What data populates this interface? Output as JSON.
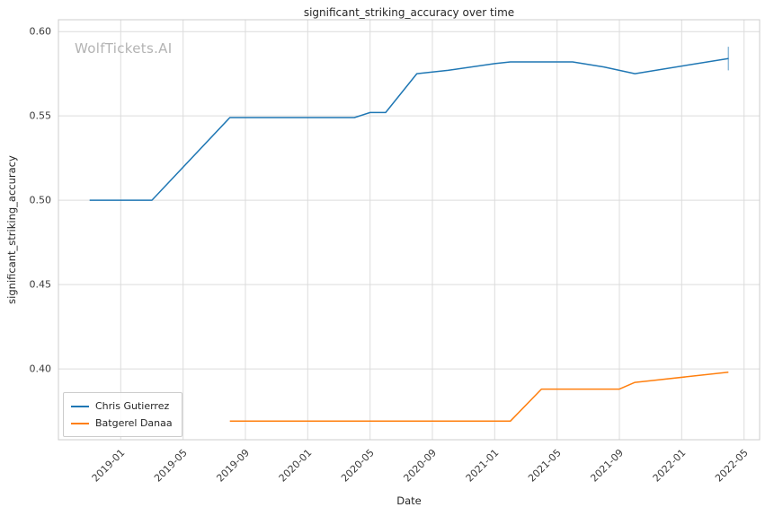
{
  "figure": {
    "watermark": "WolfTickets.AI"
  },
  "chart_data": {
    "type": "line",
    "title": "significant_striking_accuracy over time",
    "xlabel": "Date",
    "ylabel": "significant_striking_accuracy",
    "grid": true,
    "legend_position": "lower left",
    "x_ticks": [
      "2019-01",
      "2019-05",
      "2019-09",
      "2020-01",
      "2020-05",
      "2020-09",
      "2021-01",
      "2021-05",
      "2021-09",
      "2022-01",
      "2022-05"
    ],
    "y_ticks": [
      0.4,
      0.45,
      0.5,
      0.55,
      0.6
    ],
    "xlim": [
      "2018-09",
      "2022-06"
    ],
    "ylim": [
      0.358,
      0.607
    ],
    "series": [
      {
        "name": "Chris Gutierrez",
        "color": "#1f77b4",
        "points": [
          [
            "2018-11",
            0.5
          ],
          [
            "2019-03",
            0.5
          ],
          [
            "2019-08",
            0.549
          ],
          [
            "2020-04",
            0.549
          ],
          [
            "2020-05",
            0.552
          ],
          [
            "2020-06",
            0.552
          ],
          [
            "2020-08",
            0.575
          ],
          [
            "2020-10",
            0.577
          ],
          [
            "2021-01",
            0.581
          ],
          [
            "2021-02",
            0.582
          ],
          [
            "2021-06",
            0.582
          ],
          [
            "2021-08",
            0.579
          ],
          [
            "2021-10",
            0.575
          ],
          [
            "2022-04",
            0.584
          ]
        ],
        "error_bar_last": [
          0.577,
          0.591
        ]
      },
      {
        "name": "Batgerel Danaa",
        "color": "#ff7f0e",
        "points": [
          [
            "2019-08",
            0.369
          ],
          [
            "2021-02",
            0.369
          ],
          [
            "2021-04",
            0.388
          ],
          [
            "2021-09",
            0.388
          ],
          [
            "2021-10",
            0.392
          ],
          [
            "2021-11",
            0.393
          ],
          [
            "2022-04",
            0.398
          ]
        ]
      }
    ]
  }
}
